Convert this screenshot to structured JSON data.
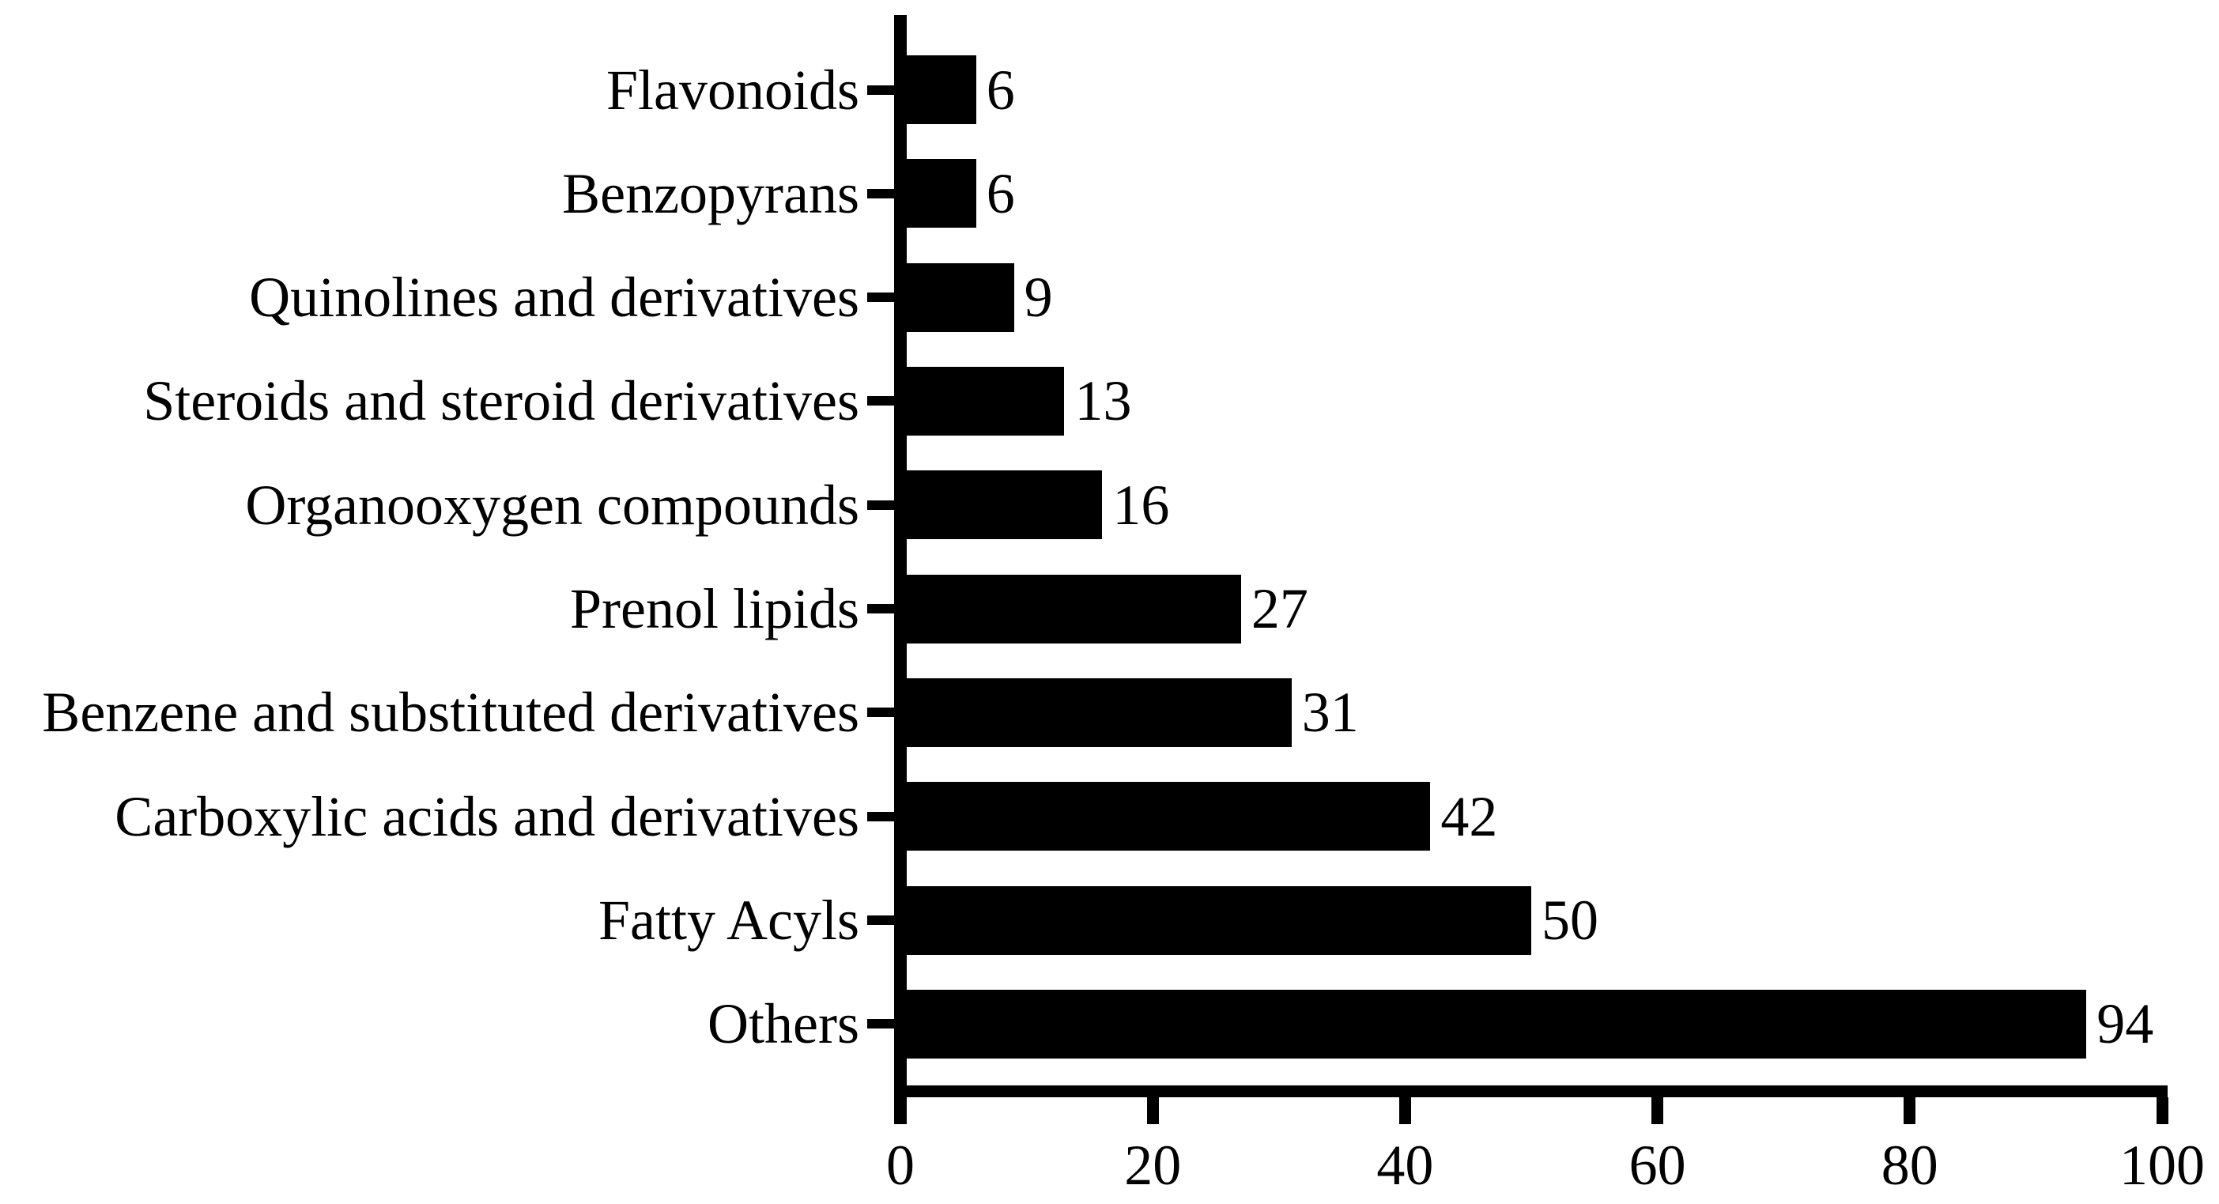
{
  "chart_data": {
    "type": "bar",
    "orientation": "horizontal",
    "title": "",
    "xlabel": "",
    "ylabel": "",
    "categories": [
      "Flavonoids",
      "Benzopyrans",
      "Quinolines and derivatives",
      "Steroids and steroid derivatives",
      "Organooxygen compounds",
      "Prenol lipids",
      "Benzene and substituted derivatives",
      "Carboxylic acids and derivatives",
      "Fatty Acyls",
      "Others"
    ],
    "values": [
      6,
      6,
      9,
      13,
      16,
      27,
      31,
      42,
      50,
      94
    ],
    "value_labels": [
      "6",
      "6",
      "9",
      "13",
      "16",
      "27",
      "31",
      "42",
      "50",
      "94"
    ],
    "xlim": [
      0,
      100
    ],
    "x_ticks": [
      0,
      20,
      40,
      60,
      80,
      100
    ],
    "x_tick_labels": [
      "0",
      "20",
      "40",
      "60",
      "80",
      "100"
    ],
    "grid": false,
    "legend": null,
    "bar_color": "#000000",
    "axis_color": "#000000",
    "text_color": "#000000",
    "background_color": "#ffffff"
  }
}
